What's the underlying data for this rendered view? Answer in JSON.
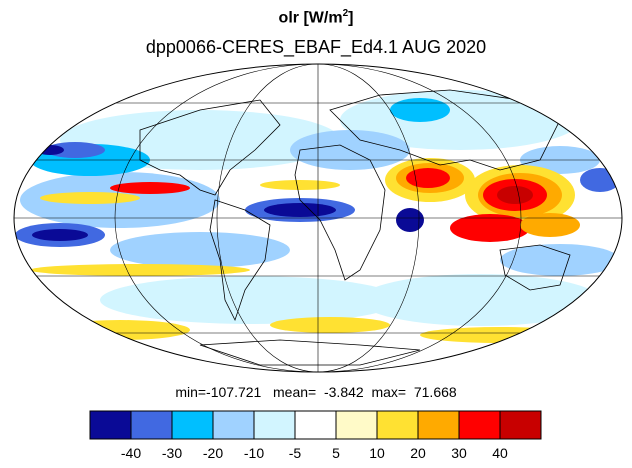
{
  "title": {
    "variable": "olr",
    "units_prefix": "[W/m",
    "units_exp": "2",
    "units_suffix": "]"
  },
  "subtitle": "dpp0066-CERES_EBAF_Ed4.1  AUG 2020",
  "stats": {
    "min": "min=-107.721",
    "mean": "mean=  -3.842",
    "max": "max=  71.668"
  },
  "colorbar": {
    "colors": [
      "#0a0a96",
      "#4169e1",
      "#00bfff",
      "#a0d2ff",
      "#d2f5ff",
      "#ffffff",
      "#fffac8",
      "#ffe132",
      "#ffaa00",
      "#ff0000",
      "#c80000"
    ],
    "ticks": [
      "-40",
      "-30",
      "-20",
      "-10",
      "-5",
      "5",
      "10",
      "20",
      "30",
      "40"
    ]
  },
  "map": {
    "projection": "Mollweide",
    "land_outline_color": "#000000",
    "graticule_color": "#000000"
  }
}
